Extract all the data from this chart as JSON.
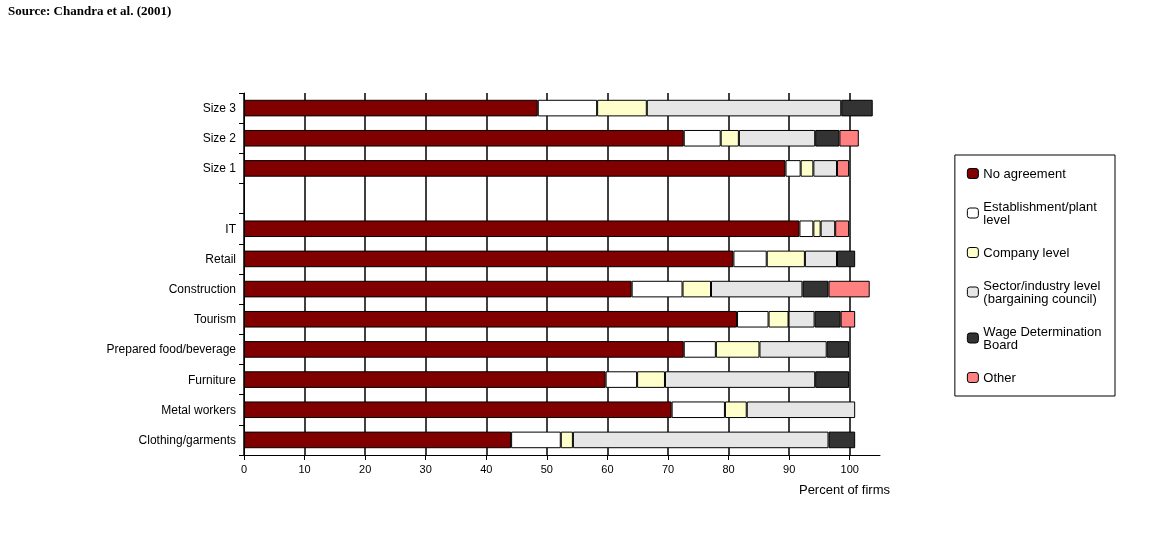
{
  "chart_data": {
    "type": "bar",
    "orientation": "horizontal",
    "stacked": true,
    "xlabel": "Percent of firms",
    "annotations": [
      "Source: Chandra et al. (2001)"
    ],
    "categories": [
      "Size 3",
      "Size 2",
      "Size 1",
      null,
      "IT",
      "Retail",
      "Construction",
      "Tourism",
      "Prepared food/beverage",
      "Furniture",
      "Metal workers",
      "Clothing/garments"
    ],
    "series": [
      {
        "name": "No agreement",
        "color": "#800000",
        "values": [
          48.5,
          72.6,
          89.4,
          null,
          91.7,
          80.8,
          64.0,
          81.4,
          72.6,
          59.7,
          70.6,
          44.1
        ]
      },
      {
        "name": "Establishment/plant level",
        "color": "#ffffff",
        "values": [
          9.8,
          6.1,
          2.5,
          null,
          2.3,
          5.5,
          8.4,
          5.2,
          5.3,
          5.2,
          8.8,
          8.2
        ]
      },
      {
        "name": "Company level",
        "color": "#ffffcc",
        "values": [
          8.2,
          3.0,
          2.1,
          null,
          1.2,
          6.3,
          4.7,
          3.3,
          7.2,
          4.6,
          3.6,
          2.0
        ]
      },
      {
        "name": "Sector/industry level (bargaining council)",
        "color": "#e6e6e6",
        "values": [
          32.1,
          12.6,
          3.9,
          null,
          2.4,
          5.3,
          15.1,
          4.3,
          11.1,
          24.8,
          17.9,
          42.2
        ]
      },
      {
        "name": "Wage Determination Board",
        "color": "#333333",
        "values": [
          5.2,
          4.0,
          null,
          null,
          null,
          3.0,
          4.3,
          4.3,
          3.7,
          5.6,
          null,
          4.4
        ]
      },
      {
        "name": "Other",
        "color": "#ff8080",
        "values": [
          null,
          3.2,
          2.0,
          null,
          2.3,
          null,
          6.8,
          2.4,
          null,
          null,
          null,
          null
        ]
      }
    ],
    "xlim": [
      0,
      105
    ],
    "xticks": [
      0,
      10,
      20,
      30,
      40,
      50,
      60,
      70,
      80,
      90,
      100
    ],
    "grid": "x",
    "legend": "right"
  }
}
